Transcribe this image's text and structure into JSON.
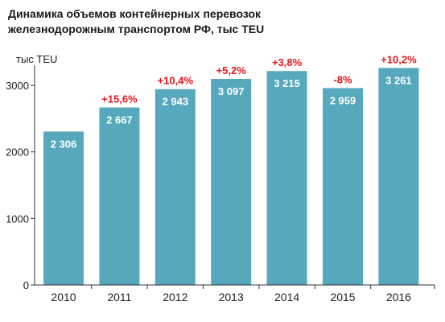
{
  "chart_data": {
    "type": "bar",
    "title_lines": [
      "Динамика объемов контейнерных перевозок",
      "железнодорожным транспортом РФ, тыс TEU"
    ],
    "unit_label": "тыс TEU",
    "categories": [
      "2010",
      "2011",
      "2012",
      "2013",
      "2014",
      "2015",
      "2016"
    ],
    "values": [
      2306,
      2667,
      2943,
      3097,
      3215,
      2959,
      3261
    ],
    "value_labels": [
      "2 306",
      "2 667",
      "2 943",
      "3 097",
      "3 215",
      "2 959",
      "3 261"
    ],
    "growth_labels": [
      "",
      "+15,6%",
      "+10,4%",
      "+5,2%",
      "+3,8%",
      "-8%",
      "+10,2%"
    ],
    "yticks": [
      0,
      1000,
      2000,
      3000
    ],
    "ylim": [
      0,
      3300
    ],
    "grid": false,
    "legend": "none",
    "colors": {
      "bar": "#56a9bd",
      "growth": "#e8151b",
      "value_text": "#ffffff",
      "axis": "#333333"
    }
  }
}
